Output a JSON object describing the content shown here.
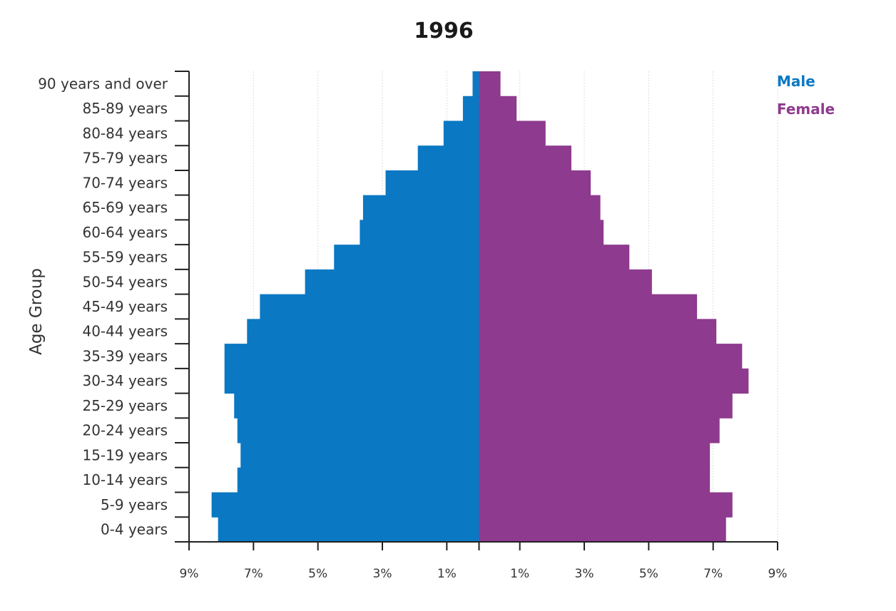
{
  "chart_data": {
    "type": "bar",
    "orientation": "population-pyramid",
    "title": "1996",
    "ylabel": "Age Group",
    "xlabel": "",
    "categories": [
      "0-4 years",
      "5-9 years",
      "10-14 years",
      "15-19 years",
      "20-24 years",
      "25-29 years",
      "30-34 years",
      "35-39 years",
      "40-44 years",
      "45-49 years",
      "50-54 years",
      "55-59 years",
      "60-64 years",
      "65-69 years",
      "70-74 years",
      "75-79 years",
      "80-84 years",
      "85-89 years",
      "90 years and over"
    ],
    "series": [
      {
        "name": "Male",
        "color": "#0a78c3",
        "values": [
          8.1,
          8.3,
          7.5,
          7.4,
          7.5,
          7.6,
          7.9,
          7.9,
          7.2,
          6.8,
          5.4,
          4.5,
          3.7,
          3.6,
          2.9,
          1.9,
          1.1,
          0.5,
          0.2
        ]
      },
      {
        "name": "Female",
        "color": "#8e3a8e",
        "values": [
          7.4,
          7.6,
          6.9,
          6.9,
          7.2,
          7.6,
          8.1,
          7.9,
          7.1,
          6.5,
          5.1,
          4.4,
          3.6,
          3.5,
          3.2,
          2.6,
          1.8,
          0.9,
          0.4
        ]
      }
    ],
    "xlim": [
      -9,
      9
    ],
    "xticks": [
      -9,
      -7,
      -5,
      -3,
      -1,
      1,
      3,
      5,
      7,
      9
    ],
    "xtick_labels": [
      "9%",
      "7%",
      "5%",
      "3%",
      "1%",
      "1%",
      "3%",
      "5%",
      "7%",
      "9%"
    ],
    "grid": true,
    "legend_position": "top-right"
  }
}
